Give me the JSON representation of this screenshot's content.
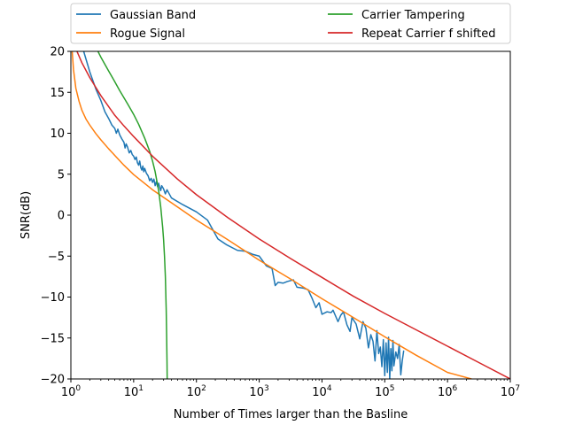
{
  "chart_data": {
    "type": "line",
    "title": "",
    "xlabel": "Number of Times larger than the Basline",
    "ylabel": "SNR(dB)",
    "xscale": "log",
    "xlim": [
      1,
      10000000
    ],
    "ylim": [
      -20,
      20
    ],
    "x_ticks": [
      {
        "value": 1,
        "base": "10",
        "exp": "0"
      },
      {
        "value": 10,
        "base": "10",
        "exp": "1"
      },
      {
        "value": 100,
        "base": "10",
        "exp": "2"
      },
      {
        "value": 1000,
        "base": "10",
        "exp": "3"
      },
      {
        "value": 10000,
        "base": "10",
        "exp": "4"
      },
      {
        "value": 100000,
        "base": "10",
        "exp": "5"
      },
      {
        "value": 1000000,
        "base": "10",
        "exp": "6"
      },
      {
        "value": 10000000,
        "base": "10",
        "exp": "7"
      }
    ],
    "y_ticks": [
      {
        "value": 20,
        "label": "20"
      },
      {
        "value": 15,
        "label": "15"
      },
      {
        "value": 10,
        "label": "10"
      },
      {
        "value": 5,
        "label": "5"
      },
      {
        "value": 0,
        "label": "0"
      },
      {
        "value": -5,
        "label": "−5"
      },
      {
        "value": -10,
        "label": "−10"
      },
      {
        "value": -15,
        "label": "−15"
      },
      {
        "value": -20,
        "label": "−20"
      }
    ],
    "grid": false,
    "legend_position": "top, above plot, two columns",
    "series": [
      {
        "name": "Gaussian Band",
        "color": "#1f77b4",
        "x": [
          1.6,
          2.0,
          2.5,
          3.0,
          3.5,
          4.0,
          4.5,
          5.0,
          5.3,
          5.6,
          6.0,
          6.5,
          7.0,
          7.3,
          7.6,
          8.0,
          8.5,
          9.0,
          9.5,
          10.0,
          10.5,
          11.0,
          11.5,
          12.0,
          12.5,
          13.0,
          13.5,
          14.0,
          14.5,
          15.0,
          16.0,
          17.0,
          18.0,
          19.0,
          20.0,
          21.0,
          22.0,
          23.0,
          24.0,
          25.0,
          26.0,
          27.0,
          28.0,
          30.0,
          32.0,
          34.0,
          40.0,
          60.0,
          100.0,
          150.0,
          220.0,
          300.0,
          450.0,
          600.0,
          800.0,
          1000.0,
          1300.0,
          1600.0,
          1800.0,
          2000.0,
          2400.0,
          2800.0,
          3500.0,
          4000.0,
          5000.0,
          6000.0,
          7000.0,
          8000.0,
          9000.0,
          10000.0,
          12000.0,
          14000.0,
          15000.0,
          18000.0,
          20000.0,
          22000.0,
          25000.0,
          28000.0,
          30000.0,
          35000.0,
          40000.0,
          45000.0,
          50000.0,
          55000.0,
          60000.0,
          65000.0,
          70000.0,
          75000.0,
          80000.0,
          85000.0,
          90000.0,
          95000.0,
          100000.0,
          105000.0,
          110000.0,
          115000.0,
          120000.0,
          125000.0,
          130000.0,
          135000.0,
          140000.0,
          150000.0,
          160000.0,
          170000.0,
          180000.0,
          190000.0,
          200000.0
        ],
        "y": [
          20.0,
          17.5,
          15.4,
          14.0,
          12.6,
          11.8,
          11.0,
          10.6,
          10.0,
          10.5,
          9.8,
          9.3,
          8.9,
          8.2,
          8.7,
          8.3,
          7.6,
          7.9,
          7.4,
          7.2,
          6.8,
          7.1,
          6.4,
          6.1,
          6.6,
          5.8,
          5.5,
          6.0,
          5.3,
          5.7,
          5.1,
          4.8,
          4.2,
          4.5,
          4.0,
          4.4,
          3.6,
          4.1,
          3.5,
          3.9,
          3.4,
          3.0,
          3.6,
          3.2,
          2.6,
          3.1,
          2.1,
          1.3,
          0.4,
          -0.6,
          -2.9,
          -3.6,
          -4.3,
          -4.4,
          -4.8,
          -5.0,
          -6.2,
          -6.5,
          -8.6,
          -8.2,
          -8.3,
          -8.1,
          -7.9,
          -8.8,
          -8.9,
          -9.1,
          -10.2,
          -11.3,
          -10.7,
          -12.1,
          -11.8,
          -11.9,
          -11.6,
          -13.0,
          -12.2,
          -11.8,
          -13.4,
          -14.2,
          -12.5,
          -13.3,
          -15.1,
          -13.0,
          -13.8,
          -16.2,
          -14.6,
          -15.4,
          -17.8,
          -14.1,
          -16.9,
          -16.1,
          -18.5,
          -15.2,
          -19.6,
          -15.6,
          -19.2,
          -14.9,
          -20.0,
          -16.3,
          -19.0,
          -15.3,
          -18.4,
          -16.7,
          -17.5,
          -15.8,
          -19.5,
          -17.8,
          -16.6
        ]
      },
      {
        "name": "Rogue Signal",
        "color": "#ff7f0e",
        "x": [
          1.05,
          1.1,
          1.2,
          1.35,
          1.5,
          1.75,
          2.0,
          2.5,
          3.0,
          4.0,
          5.0,
          7.0,
          10.0,
          20.0,
          50.0,
          100.0,
          316.0,
          1000.0,
          3162.0,
          10000.0,
          31623.0,
          100000.0,
          316228.0,
          1000000.0,
          2400000.0
        ],
        "y": [
          20.0,
          17.8,
          15.5,
          13.9,
          12.8,
          11.7,
          11.0,
          9.95,
          9.2,
          8.1,
          7.3,
          6.1,
          4.95,
          3.1,
          1.0,
          -0.6,
          -3.0,
          -5.5,
          -7.8,
          -10.2,
          -12.5,
          -14.85,
          -17.1,
          -19.2,
          -20.0
        ]
      },
      {
        "name": "Carrier Tampering",
        "color": "#2ca02c",
        "x": [
          2.7,
          3.0,
          4.0,
          5.0,
          6.0,
          8.0,
          10.0,
          12.0,
          15.0,
          18.0,
          20.0,
          22.0,
          25.0,
          27.0,
          29.0,
          30.0,
          31.0,
          32.0,
          33.0,
          33.5,
          34.0,
          34.2
        ],
        "y": [
          20.0,
          19.3,
          17.6,
          16.3,
          15.2,
          13.6,
          12.3,
          11.1,
          9.4,
          7.8,
          6.6,
          5.3,
          3.0,
          1.0,
          -1.5,
          -3.0,
          -5.0,
          -7.5,
          -11.5,
          -14.5,
          -18.0,
          -20.0
        ]
      },
      {
        "name": "Repeat Carrier f shifted",
        "color": "#d62728",
        "x": [
          1.25,
          1.5,
          2.0,
          3.0,
          5.0,
          7.0,
          10.0,
          20.0,
          50.0,
          100.0,
          316.0,
          1000.0,
          3162.0,
          10000.0,
          31623.0,
          100000.0,
          316228.0,
          1000000.0,
          3162278.0,
          10000000.0
        ],
        "y": [
          20.0,
          18.6,
          16.8,
          14.6,
          12.2,
          10.9,
          9.6,
          7.2,
          4.4,
          2.5,
          -0.3,
          -2.9,
          -5.3,
          -7.6,
          -9.9,
          -12.0,
          -14.0,
          -16.0,
          -18.0,
          -20.0
        ]
      }
    ]
  }
}
